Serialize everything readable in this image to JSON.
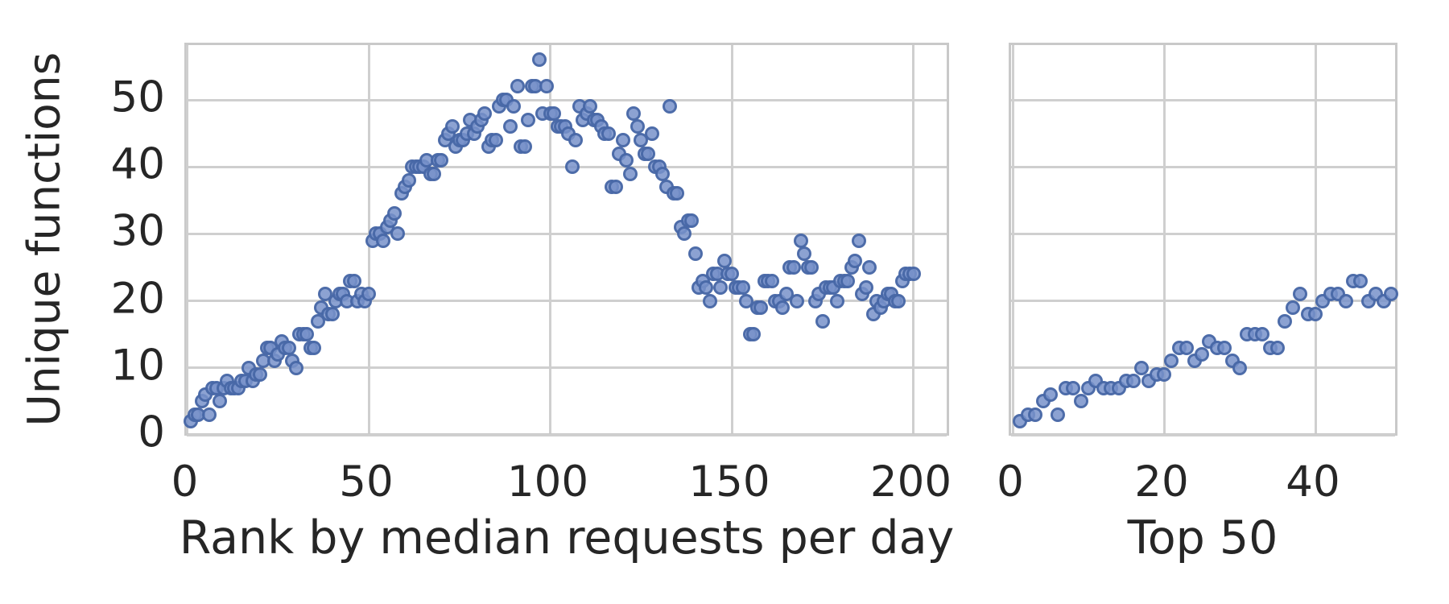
{
  "figure": {
    "background": "#ffffff",
    "text_color": "#262626",
    "grid_color": "#cfcfcf",
    "marker_fill": "#7892ca",
    "marker_edge": "#4c72b0"
  },
  "labels": {
    "left_xlabel": "Rank by median requests per day",
    "right_xlabel": "Top 50",
    "ylabel": "Unique functions"
  },
  "chart_data": [
    {
      "type": "scatter",
      "panel": "left",
      "xlabel": "Rank by median requests per day",
      "ylabel": "Unique functions",
      "xticks": [
        0,
        50,
        100,
        150,
        200
      ],
      "yticks": [
        0,
        10,
        20,
        30,
        40,
        50
      ],
      "xlim": [
        0,
        210.5
      ],
      "ylim": [
        -0.5,
        58.2
      ],
      "grid": true,
      "legend": false,
      "x_is_rank_starting_at_1": true,
      "values": [
        2,
        3,
        3,
        5,
        6,
        3,
        7,
        7,
        5,
        7,
        8,
        7,
        7,
        7,
        8,
        8,
        10,
        8,
        9,
        9,
        11,
        13,
        13,
        11,
        12,
        14,
        13,
        13,
        11,
        10,
        15,
        15,
        15,
        13,
        13,
        17,
        19,
        21,
        18,
        18,
        20,
        21,
        21,
        20,
        23,
        23,
        20,
        21,
        20,
        21,
        29,
        30,
        30,
        29,
        31,
        32,
        33,
        30,
        36,
        37,
        38,
        40,
        40,
        40,
        40,
        41,
        39,
        39,
        41,
        41,
        44,
        45,
        46,
        43,
        44,
        44,
        45,
        47,
        45,
        46,
        47,
        48,
        43,
        44,
        44,
        49,
        50,
        50,
        46,
        49,
        52,
        43,
        43,
        47,
        52,
        52,
        56,
        48,
        52,
        48,
        48,
        46,
        46,
        46,
        45,
        40,
        44,
        49,
        47,
        48,
        49,
        47,
        47,
        46,
        45,
        45,
        37,
        37,
        42,
        44,
        41,
        39,
        48,
        46,
        44,
        42,
        42,
        45,
        40,
        40,
        39,
        37,
        49,
        36,
        36,
        31,
        30,
        32,
        32,
        27,
        22,
        23,
        22,
        20,
        24,
        24,
        22,
        26,
        24,
        24,
        22,
        22,
        22,
        20,
        15,
        15,
        19,
        19,
        23,
        23,
        23,
        20,
        20,
        19,
        21,
        25,
        25,
        20,
        29,
        27,
        25,
        25,
        20,
        21,
        17,
        22,
        22,
        22,
        20,
        23,
        23,
        23,
        25,
        26,
        29,
        21,
        22,
        25,
        18,
        20,
        19,
        20,
        21,
        21,
        20,
        20,
        23,
        24,
        24,
        24
      ]
    },
    {
      "type": "scatter",
      "panel": "right",
      "xlabel": "Top 50",
      "ylabel": "",
      "xticks": [
        0,
        20,
        40
      ],
      "yticks": [
        0,
        10,
        20,
        30,
        40,
        50
      ],
      "xlim": [
        0,
        51.2
      ],
      "ylim": [
        -0.5,
        58.2
      ],
      "grid": true,
      "legend": false,
      "x_is_rank_starting_at_1": true,
      "values": [
        2,
        3,
        3,
        5,
        6,
        3,
        7,
        7,
        5,
        7,
        8,
        7,
        7,
        7,
        8,
        8,
        10,
        8,
        9,
        9,
        11,
        13,
        13,
        11,
        12,
        14,
        13,
        13,
        11,
        10,
        15,
        15,
        15,
        13,
        13,
        17,
        19,
        21,
        18,
        18,
        20,
        21,
        21,
        20,
        23,
        23,
        20,
        21,
        20,
        21
      ]
    }
  ]
}
